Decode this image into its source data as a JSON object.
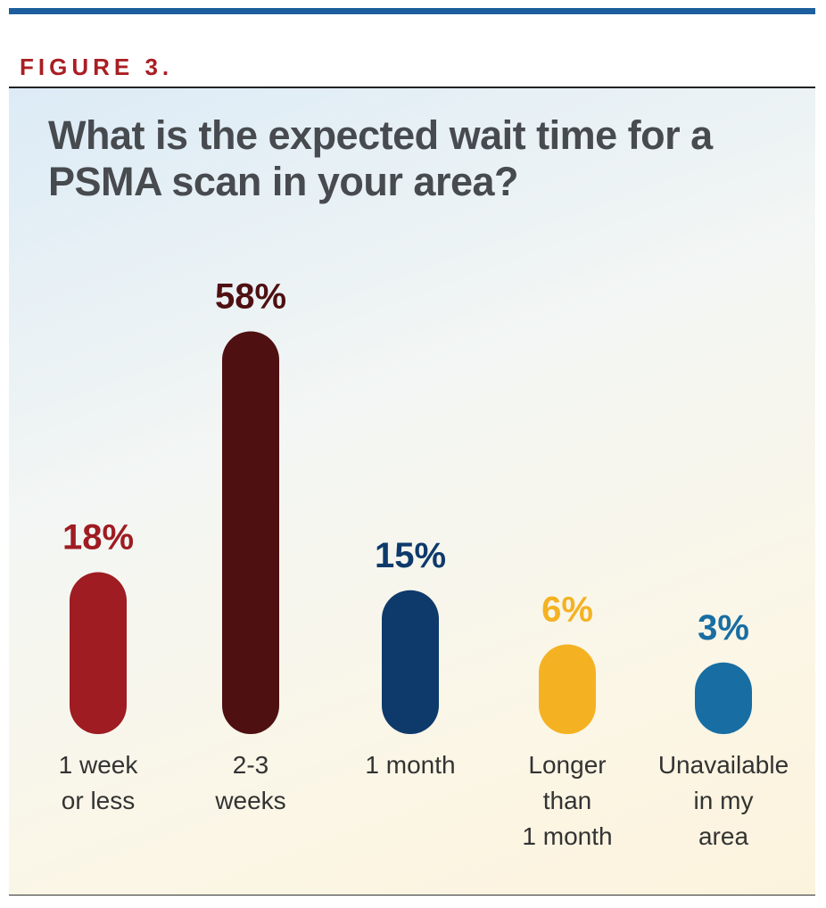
{
  "chart_data": {
    "type": "bar",
    "figure_label": "FIGURE 3.",
    "title": "What is the expected wait time for a\nPSMA scan in your area?",
    "categories": [
      "1 week\nor less",
      "2-3\nweeks",
      "1 month",
      "Longer\nthan\n1 month",
      "Unavailable\nin my\narea"
    ],
    "values": [
      18,
      58,
      15,
      6,
      3
    ],
    "value_labels": [
      "18%",
      "58%",
      "15%",
      "6%",
      "3%"
    ],
    "colors": [
      "#9e1c22",
      "#4f1012",
      "#0e3a6b",
      "#f4b223",
      "#186ea3"
    ]
  }
}
